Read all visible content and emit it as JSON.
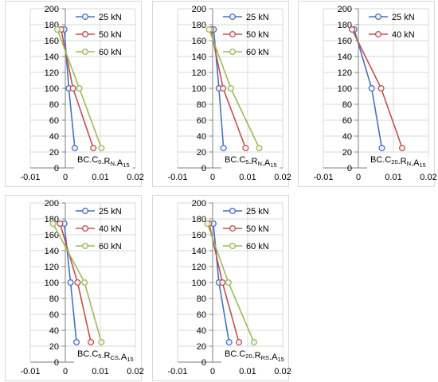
{
  "colors": {
    "25": "#4472C4",
    "40": "#C0504D",
    "50": "#C0504D",
    "60": "#9BBB59"
  },
  "chart_data": [
    {
      "type": "line",
      "label": {
        "main": "BC.C",
        "sub1": "0",
        "mid": ".R",
        "sub2": "N",
        "end": ".A",
        "sub3": "15"
      },
      "xlim": [
        -0.01,
        0.02
      ],
      "ylim": [
        0,
        200
      ],
      "xticks": [
        "-0.01",
        "0",
        "0.01",
        "0.02"
      ],
      "yticks": [
        "0",
        "20",
        "40",
        "60",
        "80",
        "100",
        "120",
        "140",
        "160",
        "180",
        "200"
      ],
      "grid": true,
      "legend_position": "top-right",
      "series": [
        {
          "name": "25 kN",
          "key": "25",
          "points": [
            [
              -0.0003,
              174
            ],
            [
              0.001,
              100
            ],
            [
              0.0027,
              25
            ]
          ]
        },
        {
          "name": "50 kN",
          "key": "50",
          "points": [
            [
              -0.0012,
              174
            ],
            [
              0.0022,
              100
            ],
            [
              0.008,
              25
            ]
          ]
        },
        {
          "name": "60 kN",
          "key": "60",
          "points": [
            [
              -0.0023,
              174
            ],
            [
              0.004,
              100
            ],
            [
              0.0103,
              25
            ]
          ]
        }
      ]
    },
    {
      "type": "line",
      "label": {
        "main": "BC.C",
        "sub1": "5",
        "mid": ".R",
        "sub2": "N",
        "end": ".A",
        "sub3": "15"
      },
      "xlim": [
        -0.01,
        0.02
      ],
      "ylim": [
        0,
        200
      ],
      "xticks": [
        "-0.01",
        "0",
        "0.01",
        "0.02"
      ],
      "yticks": [
        "0",
        "20",
        "40",
        "60",
        "80",
        "100",
        "120",
        "140",
        "160",
        "180",
        "200"
      ],
      "grid": true,
      "legend_position": "top-right",
      "series": [
        {
          "name": "25 kN",
          "key": "25",
          "points": [
            [
              0.0003,
              174
            ],
            [
              0.0018,
              100
            ],
            [
              0.0031,
              25
            ]
          ]
        },
        {
          "name": "50 kN",
          "key": "50",
          "points": [
            [
              -0.0005,
              174
            ],
            [
              0.003,
              100
            ],
            [
              0.0094,
              25
            ]
          ]
        },
        {
          "name": "60 kN",
          "key": "60",
          "points": [
            [
              -0.001,
              174
            ],
            [
              0.0052,
              100
            ],
            [
              0.0133,
              25
            ]
          ]
        }
      ]
    },
    {
      "type": "line",
      "label": {
        "main": "BC.C",
        "sub1": "20",
        "mid": ".R",
        "sub2": "N",
        "end": ".A",
        "sub3": "15"
      },
      "xlim": [
        -0.01,
        0.02
      ],
      "ylim": [
        0,
        200
      ],
      "xticks": [
        "-0.01",
        "0",
        "0.01",
        "0.02"
      ],
      "yticks": [
        "0",
        "20",
        "40",
        "60",
        "80",
        "100",
        "120",
        "140",
        "160",
        "180",
        "200"
      ],
      "grid": true,
      "legend_position": "top-right",
      "series": [
        {
          "name": "25 kN",
          "key": "25",
          "points": [
            [
              -0.0012,
              174
            ],
            [
              0.0038,
              100
            ],
            [
              0.0067,
              25
            ]
          ]
        },
        {
          "name": "40 kN",
          "key": "40",
          "points": [
            [
              -0.0018,
              174
            ],
            [
              0.0065,
              100
            ],
            [
              0.0125,
              25
            ]
          ]
        }
      ]
    },
    {
      "type": "line",
      "label": {
        "main": "BC.C",
        "sub1": "5",
        "mid": ".R",
        "sub2": "CS",
        "end": ".A",
        "sub3": "15"
      },
      "xlim": [
        -0.01,
        0.02
      ],
      "ylim": [
        0,
        200
      ],
      "xticks": [
        "-0.01",
        "0",
        "0.01",
        "0.02"
      ],
      "yticks": [
        "0",
        "20",
        "40",
        "60",
        "80",
        "100",
        "120",
        "140",
        "160",
        "180",
        "200"
      ],
      "grid": true,
      "legend_position": "top-right",
      "series": [
        {
          "name": "25 kN",
          "key": "25",
          "points": [
            [
              -0.0003,
              174
            ],
            [
              0.0015,
              100
            ],
            [
              0.0032,
              25
            ]
          ]
        },
        {
          "name": "40 kN",
          "key": "40",
          "points": [
            [
              -0.0015,
              174
            ],
            [
              0.0035,
              100
            ],
            [
              0.0073,
              25
            ]
          ]
        },
        {
          "name": "60 kN",
          "key": "60",
          "points": [
            [
              -0.0035,
              174
            ],
            [
              0.0055,
              100
            ],
            [
              0.0103,
              25
            ]
          ]
        }
      ]
    },
    {
      "type": "line",
      "label": {
        "main": "BC.C",
        "sub1": "20",
        "mid": ".R",
        "sub2": "RS",
        "end": ".A",
        "sub3": "15"
      },
      "xlim": [
        -0.01,
        0.02
      ],
      "ylim": [
        0,
        200
      ],
      "xticks": [
        "-0.01",
        "0",
        "0.01",
        "0.02"
      ],
      "yticks": [
        "0",
        "20",
        "40",
        "60",
        "80",
        "100",
        "120",
        "140",
        "160",
        "180",
        "200"
      ],
      "grid": true,
      "legend_position": "top-right",
      "series": [
        {
          "name": "25 kN",
          "key": "25",
          "points": [
            [
              0.0002,
              174
            ],
            [
              0.0018,
              100
            ],
            [
              0.0047,
              25
            ]
          ]
        },
        {
          "name": "50 kN",
          "key": "50",
          "points": [
            [
              -0.001,
              174
            ],
            [
              0.0028,
              100
            ],
            [
              0.0075,
              25
            ]
          ]
        },
        {
          "name": "60 kN",
          "key": "60",
          "points": [
            [
              -0.0015,
              174
            ],
            [
              0.0045,
              100
            ],
            [
              0.0118,
              25
            ]
          ]
        }
      ]
    }
  ]
}
